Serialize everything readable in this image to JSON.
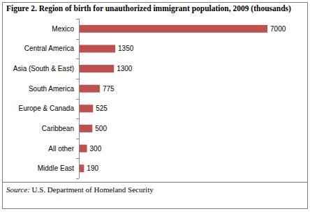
{
  "chart_data": {
    "type": "bar",
    "orientation": "horizontal",
    "title": "Figure 2. Region of birth for unauthorized immigrant population, 2009 (thousands)",
    "categories": [
      "Mexico",
      "Central America",
      "Asia (South & East)",
      "South America",
      "Europe & Canada",
      "Caribbean",
      "All other",
      "Middle East"
    ],
    "values": [
      7000,
      1350,
      1300,
      775,
      525,
      500,
      300,
      190
    ],
    "color": "#c0504d",
    "xlim": [
      0,
      8000
    ],
    "data_labels": true,
    "tick_labels": "y",
    "grid": false,
    "annotations": [
      "Source: U.S. Department of Homeland Security"
    ]
  }
}
